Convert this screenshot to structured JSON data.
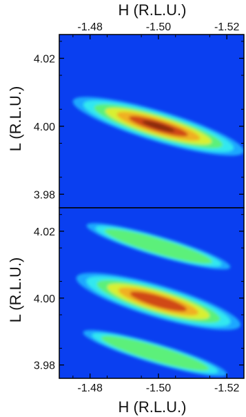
{
  "chart_data": [
    {
      "type": "heatmap",
      "panel": "top",
      "xlabel": "H (R.L.U.)",
      "ylabel": "L (R.L.U.)",
      "xlim": [
        -1.471,
        -1.525
      ],
      "ylim": [
        3.976,
        4.027
      ],
      "x_ticks": [
        -1.48,
        -1.5,
        -1.52
      ],
      "x_tick_labels": [
        "-1.48",
        "-1.50",
        "-1.52"
      ],
      "y_ticks": [
        4.02,
        4.0,
        3.98
      ],
      "y_tick_labels": [
        "4.02",
        "4.00",
        "3.98"
      ],
      "x_axis_position": "top",
      "background_color": "#0a3ff0",
      "colormap": [
        "#0a3ff0",
        "#1aa8ff",
        "#33e8f0",
        "#5cf07a",
        "#d8f030",
        "#f0b020",
        "#d04818",
        "#8a2a10"
      ],
      "peaks": [
        {
          "center": [
            -1.5,
            4.0
          ],
          "intensity": 1.0,
          "semi_axis_along": 0.025,
          "semi_axis_across": 0.0045,
          "tilt_dL_per_dH": 0.3
        }
      ]
    },
    {
      "type": "heatmap",
      "panel": "bottom",
      "xlabel": "H (R.L.U.)",
      "ylabel": "L (R.L.U.)",
      "xlim": [
        -1.471,
        -1.525
      ],
      "ylim": [
        3.976,
        4.027
      ],
      "x_ticks": [
        -1.48,
        -1.5,
        -1.52
      ],
      "x_tick_labels": [
        "-1.48",
        "-1.50",
        "-1.52"
      ],
      "y_ticks": [
        4.02,
        4.0,
        3.98
      ],
      "y_tick_labels": [
        "4.02",
        "4.00",
        "3.98"
      ],
      "x_axis_position": "bottom",
      "background_color": "#0a3ff0",
      "colormap": [
        "#0a3ff0",
        "#1aa8ff",
        "#33e8f0",
        "#5cf07a",
        "#d8f030",
        "#f0b020",
        "#d04818",
        "#8a2a10"
      ],
      "peaks": [
        {
          "center": [
            -1.5,
            3.999
          ],
          "intensity": 0.92,
          "semi_axis_along": 0.024,
          "semi_axis_across": 0.0048,
          "tilt_dL_per_dH": 0.3
        },
        {
          "center": [
            -1.5,
            4.0155
          ],
          "intensity": 0.42,
          "semi_axis_along": 0.021,
          "semi_axis_across": 0.003,
          "tilt_dL_per_dH": 0.3
        },
        {
          "center": [
            -1.499,
            3.9835
          ],
          "intensity": 0.48,
          "semi_axis_along": 0.021,
          "semi_axis_across": 0.003,
          "tilt_dL_per_dH": 0.3
        }
      ]
    }
  ]
}
